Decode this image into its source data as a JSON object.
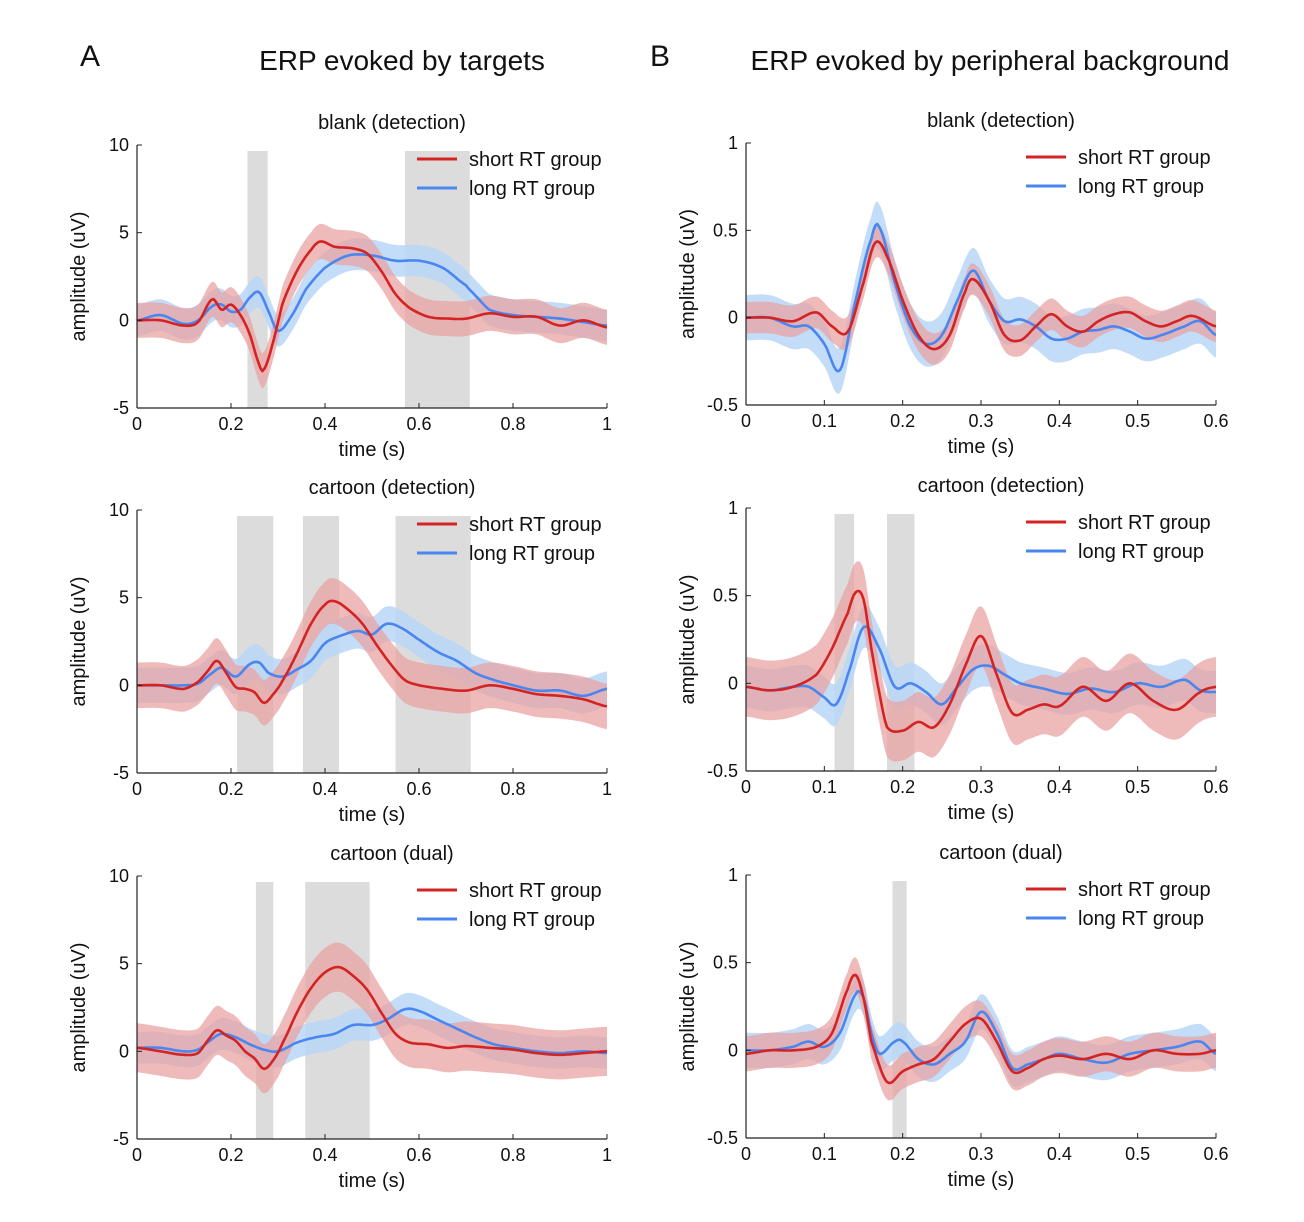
{
  "figure": {
    "panels": [
      {
        "letter": "A",
        "title": "ERP evoked by targets"
      },
      {
        "letter": "B",
        "title": "ERP evoked by peripheral background"
      }
    ],
    "colors": {
      "short": "#d42323",
      "short_band": "#e8a3a3",
      "long": "#4a86ef",
      "long_band": "#b9d6f7",
      "shade": "#dcdcdc"
    }
  },
  "chart_data": [
    {
      "id": "A1",
      "type": "line",
      "title": "blank (detection)",
      "xlabel": "time (s)",
      "ylabel": "amplitude (uV)",
      "xlim": [
        0,
        1
      ],
      "ylim": [
        -5,
        10
      ],
      "xticks": [
        0,
        0.2,
        0.4,
        0.6,
        0.8,
        1
      ],
      "xticklabels": [
        "0",
        "0.2",
        "0.4",
        "0.6",
        "0.8",
        "1"
      ],
      "yticks": [
        -5,
        0,
        5,
        10
      ],
      "yticklabels": [
        "-5",
        "0",
        "5",
        "10"
      ],
      "legend": "top-right",
      "shaded_intervals": [
        [
          0.235,
          0.278
        ],
        [
          0.57,
          0.708
        ]
      ],
      "series": [
        {
          "name": "short RT group",
          "band": 1.0,
          "x": [
            0,
            0.05,
            0.1,
            0.13,
            0.16,
            0.18,
            0.2,
            0.22,
            0.24,
            0.26,
            0.27,
            0.29,
            0.31,
            0.34,
            0.37,
            0.39,
            0.42,
            0.46,
            0.49,
            0.52,
            0.55,
            0.58,
            0.62,
            0.66,
            0.7,
            0.75,
            0.8,
            0.85,
            0.9,
            0.95,
            1.0
          ],
          "y": [
            0,
            0,
            -0.3,
            -0.1,
            1.2,
            0.6,
            0.9,
            0.3,
            -0.8,
            -2.5,
            -2.8,
            -1.2,
            1.0,
            2.8,
            4.0,
            4.5,
            4.2,
            4.1,
            3.8,
            2.8,
            1.5,
            0.7,
            0.2,
            0.1,
            0.1,
            0.4,
            0.2,
            0.2,
            -0.3,
            0,
            -0.4
          ]
        },
        {
          "name": "long RT group",
          "band": 0.9,
          "x": [
            0,
            0.05,
            0.1,
            0.13,
            0.16,
            0.18,
            0.2,
            0.22,
            0.24,
            0.26,
            0.28,
            0.3,
            0.33,
            0.36,
            0.4,
            0.45,
            0.5,
            0.55,
            0.6,
            0.65,
            0.7,
            0.72,
            0.75,
            0.8,
            0.85,
            0.9,
            0.95,
            1.0
          ],
          "y": [
            0,
            0.3,
            -0.2,
            0,
            0.8,
            0.9,
            0.5,
            0.6,
            1.3,
            1.6,
            0.5,
            -0.6,
            0.3,
            1.8,
            3.0,
            3.7,
            3.7,
            3.4,
            3.4,
            3.0,
            2.0,
            1.4,
            0.6,
            0.3,
            0.2,
            0.1,
            -0.1,
            -0.3
          ]
        }
      ]
    },
    {
      "id": "A2",
      "type": "line",
      "title": "cartoon (detection)",
      "xlabel": "time (s)",
      "ylabel": "amplitude (uV)",
      "xlim": [
        0,
        1
      ],
      "ylim": [
        -5,
        10
      ],
      "xticks": [
        0,
        0.2,
        0.4,
        0.6,
        0.8,
        1
      ],
      "xticklabels": [
        "0",
        "0.2",
        "0.4",
        "0.6",
        "0.8",
        "1"
      ],
      "yticks": [
        -5,
        0,
        5,
        10
      ],
      "yticklabels": [
        "-5",
        "0",
        "5",
        "10"
      ],
      "legend": "top-right",
      "shaded_intervals": [
        [
          0.213,
          0.29
        ],
        [
          0.353,
          0.43
        ],
        [
          0.55,
          0.71
        ]
      ],
      "series": [
        {
          "name": "short RT group",
          "band": 1.3,
          "x": [
            0,
            0.05,
            0.1,
            0.13,
            0.15,
            0.17,
            0.19,
            0.21,
            0.23,
            0.25,
            0.27,
            0.29,
            0.31,
            0.34,
            0.37,
            0.4,
            0.42,
            0.45,
            0.48,
            0.51,
            0.54,
            0.57,
            0.6,
            0.65,
            0.7,
            0.75,
            0.8,
            0.85,
            0.9,
            0.95,
            1.0
          ],
          "y": [
            0,
            0,
            -0.2,
            0.2,
            0.8,
            1.4,
            0.7,
            -0.1,
            -0.2,
            -0.4,
            -1.0,
            -0.5,
            0.3,
            1.8,
            3.5,
            4.6,
            4.8,
            4.3,
            3.5,
            2.3,
            1.2,
            0.3,
            0,
            -0.2,
            -0.3,
            0,
            -0.2,
            -0.5,
            -0.6,
            -0.8,
            -1.2
          ]
        },
        {
          "name": "long RT group",
          "band": 1.0,
          "x": [
            0,
            0.05,
            0.1,
            0.13,
            0.16,
            0.18,
            0.21,
            0.24,
            0.26,
            0.28,
            0.31,
            0.34,
            0.37,
            0.4,
            0.43,
            0.47,
            0.5,
            0.53,
            0.56,
            0.6,
            0.64,
            0.68,
            0.72,
            0.76,
            0.8,
            0.85,
            0.9,
            0.95,
            1.0
          ],
          "y": [
            0,
            0,
            0,
            0.1,
            0.7,
            1.0,
            0.5,
            1.2,
            1.3,
            0.7,
            0.5,
            0.9,
            1.4,
            2.4,
            2.8,
            3.1,
            2.9,
            3.5,
            3.3,
            2.6,
            1.9,
            1.4,
            0.7,
            0.3,
            0,
            -0.3,
            -0.3,
            -0.6,
            -0.2
          ]
        }
      ]
    },
    {
      "id": "A3",
      "type": "line",
      "title": "cartoon (dual)",
      "xlabel": "time (s)",
      "ylabel": "amplitude (uV)",
      "xlim": [
        0,
        1
      ],
      "ylim": [
        -5,
        10
      ],
      "xticks": [
        0,
        0.2,
        0.4,
        0.6,
        0.8,
        1
      ],
      "xticklabels": [
        "0",
        "0.2",
        "0.4",
        "0.6",
        "0.8",
        "1"
      ],
      "yticks": [
        -5,
        0,
        5,
        10
      ],
      "yticklabels": [
        "-5",
        "0",
        "5",
        "10"
      ],
      "legend": "top-right",
      "shaded_intervals": [
        [
          0.253,
          0.29
        ],
        [
          0.358,
          0.495
        ]
      ],
      "series": [
        {
          "name": "short RT group",
          "band": 1.4,
          "x": [
            0,
            0.05,
            0.1,
            0.13,
            0.15,
            0.17,
            0.19,
            0.21,
            0.23,
            0.25,
            0.27,
            0.29,
            0.31,
            0.34,
            0.37,
            0.4,
            0.43,
            0.46,
            0.49,
            0.52,
            0.55,
            0.58,
            0.62,
            0.66,
            0.7,
            0.75,
            0.8,
            0.85,
            0.9,
            0.95,
            1.0
          ],
          "y": [
            0.2,
            0,
            -0.2,
            -0.1,
            0.6,
            1.2,
            0.9,
            0.6,
            0,
            -0.4,
            -1.0,
            -0.5,
            0.5,
            2.2,
            3.6,
            4.5,
            4.8,
            4.3,
            3.5,
            2.2,
            1.0,
            0.5,
            0.4,
            0.2,
            0.3,
            0.2,
            0.1,
            -0.1,
            -0.2,
            -0.1,
            0
          ]
        },
        {
          "name": "long RT group",
          "band": 0.9,
          "x": [
            0,
            0.05,
            0.1,
            0.13,
            0.16,
            0.18,
            0.21,
            0.24,
            0.27,
            0.3,
            0.34,
            0.38,
            0.42,
            0.46,
            0.5,
            0.53,
            0.57,
            0.6,
            0.64,
            0.68,
            0.72,
            0.76,
            0.8,
            0.85,
            0.9,
            0.95,
            1.0
          ],
          "y": [
            0.2,
            0.2,
            0,
            0.1,
            0.7,
            1.0,
            0.8,
            0.4,
            0.1,
            0,
            0.5,
            0.8,
            1.0,
            1.5,
            1.5,
            1.8,
            2.4,
            2.3,
            1.8,
            1.3,
            0.8,
            0.4,
            0.2,
            0,
            -0.1,
            0,
            -0.1
          ]
        }
      ]
    },
    {
      "id": "B1",
      "type": "line",
      "title": "blank (detection)",
      "xlabel": "time (s)",
      "ylabel": "amplitude (uV)",
      "xlim": [
        0,
        0.6
      ],
      "ylim": [
        -0.5,
        1
      ],
      "xticks": [
        0,
        0.1,
        0.2,
        0.3,
        0.4,
        0.5,
        0.6
      ],
      "xticklabels": [
        "0",
        "0.1",
        "0.2",
        "0.3",
        "0.4",
        "0.5",
        "0.6"
      ],
      "yticks": [
        -0.5,
        0,
        0.5,
        1
      ],
      "yticklabels": [
        "-0.5",
        "0",
        "0.5",
        "1"
      ],
      "legend": "top-right",
      "shaded_intervals": [],
      "series": [
        {
          "name": "short RT group",
          "band": 0.09,
          "x": [
            0,
            0.03,
            0.06,
            0.09,
            0.11,
            0.13,
            0.15,
            0.165,
            0.18,
            0.2,
            0.22,
            0.24,
            0.26,
            0.28,
            0.29,
            0.31,
            0.33,
            0.35,
            0.37,
            0.39,
            0.41,
            0.43,
            0.45,
            0.47,
            0.49,
            0.51,
            0.53,
            0.55,
            0.57,
            0.6
          ],
          "y": [
            0,
            0,
            -0.02,
            0.03,
            -0.05,
            -0.08,
            0.2,
            0.43,
            0.35,
            0.1,
            -0.1,
            -0.18,
            -0.1,
            0.15,
            0.22,
            0.1,
            -0.1,
            -0.13,
            -0.05,
            0.02,
            -0.05,
            -0.08,
            -0.02,
            0.02,
            0.03,
            -0.02,
            -0.05,
            -0.02,
            0.01,
            -0.05
          ]
        },
        {
          "name": "long RT group",
          "band": 0.13,
          "x": [
            0,
            0.03,
            0.06,
            0.08,
            0.1,
            0.12,
            0.14,
            0.16,
            0.17,
            0.19,
            0.21,
            0.23,
            0.25,
            0.27,
            0.29,
            0.31,
            0.33,
            0.35,
            0.37,
            0.39,
            0.41,
            0.43,
            0.45,
            0.47,
            0.49,
            0.51,
            0.53,
            0.56,
            0.58,
            0.6
          ],
          "y": [
            0,
            0,
            -0.05,
            -0.05,
            -0.15,
            -0.3,
            0.1,
            0.45,
            0.52,
            0.2,
            -0.05,
            -0.15,
            -0.1,
            0.1,
            0.27,
            0.1,
            -0.02,
            -0.01,
            -0.05,
            -0.12,
            -0.12,
            -0.08,
            -0.07,
            -0.05,
            -0.08,
            -0.12,
            -0.1,
            -0.05,
            -0.02,
            -0.1
          ]
        }
      ]
    },
    {
      "id": "B2",
      "type": "line",
      "title": "cartoon (detection)",
      "xlabel": "time (s)",
      "ylabel": "amplitude (uV)",
      "xlim": [
        0,
        0.6
      ],
      "ylim": [
        -0.5,
        1
      ],
      "xticks": [
        0,
        0.1,
        0.2,
        0.3,
        0.4,
        0.5,
        0.6
      ],
      "xticklabels": [
        "0",
        "0.1",
        "0.2",
        "0.3",
        "0.4",
        "0.5",
        "0.6"
      ],
      "yticks": [
        -0.5,
        0,
        0.5,
        1
      ],
      "yticklabels": [
        "-0.5",
        "0",
        "0.5",
        "1"
      ],
      "legend": "top-right",
      "shaded_intervals": [
        [
          0.113,
          0.138
        ],
        [
          0.18,
          0.215
        ]
      ],
      "series": [
        {
          "name": "short RT group",
          "band": 0.17,
          "x": [
            0,
            0.03,
            0.06,
            0.09,
            0.11,
            0.13,
            0.14,
            0.15,
            0.16,
            0.17,
            0.18,
            0.2,
            0.22,
            0.24,
            0.26,
            0.28,
            0.3,
            0.32,
            0.34,
            0.36,
            0.38,
            0.4,
            0.43,
            0.46,
            0.49,
            0.52,
            0.55,
            0.58,
            0.6
          ],
          "y": [
            -0.02,
            -0.04,
            -0.02,
            0.05,
            0.2,
            0.4,
            0.52,
            0.48,
            0.2,
            -0.05,
            -0.25,
            -0.27,
            -0.22,
            -0.25,
            -0.12,
            0.1,
            0.27,
            0.05,
            -0.17,
            -0.15,
            -0.12,
            -0.13,
            -0.02,
            -0.1,
            0,
            -0.1,
            -0.15,
            -0.05,
            -0.02
          ]
        },
        {
          "name": "long RT group",
          "band": 0.12,
          "x": [
            0,
            0.03,
            0.06,
            0.08,
            0.1,
            0.115,
            0.13,
            0.15,
            0.17,
            0.19,
            0.21,
            0.23,
            0.25,
            0.27,
            0.29,
            0.31,
            0.33,
            0.35,
            0.38,
            0.41,
            0.44,
            0.47,
            0.5,
            0.53,
            0.56,
            0.58,
            0.6
          ],
          "y": [
            -0.02,
            -0.04,
            -0.02,
            -0.02,
            -0.08,
            -0.12,
            0.05,
            0.32,
            0.2,
            -0.02,
            0,
            -0.05,
            -0.12,
            -0.02,
            0.08,
            0.1,
            0.05,
            0.0,
            -0.03,
            -0.06,
            -0.03,
            -0.05,
            0,
            -0.02,
            0.02,
            -0.04,
            -0.05
          ]
        }
      ]
    },
    {
      "id": "B3",
      "type": "line",
      "title": "cartoon (dual)",
      "xlabel": "time (s)",
      "ylabel": "amplitude (uV)",
      "xlim": [
        0,
        0.6
      ],
      "ylim": [
        -0.5,
        1
      ],
      "xticks": [
        0,
        0.1,
        0.2,
        0.3,
        0.4,
        0.5,
        0.6
      ],
      "xticklabels": [
        "0",
        "0.1",
        "0.2",
        "0.3",
        "0.4",
        "0.5",
        "0.6"
      ],
      "yticks": [
        -0.5,
        0,
        0.5,
        1
      ],
      "yticklabels": [
        "-0.5",
        "0",
        "0.5",
        "1"
      ],
      "legend": "top-right",
      "shaded_intervals": [
        [
          0.187,
          0.205
        ]
      ],
      "series": [
        {
          "name": "short RT group",
          "band": 0.1,
          "x": [
            0,
            0.03,
            0.06,
            0.09,
            0.11,
            0.13,
            0.14,
            0.15,
            0.16,
            0.18,
            0.2,
            0.22,
            0.24,
            0.26,
            0.28,
            0.3,
            0.32,
            0.34,
            0.36,
            0.38,
            0.4,
            0.43,
            0.46,
            0.49,
            0.52,
            0.55,
            0.58,
            0.6
          ],
          "y": [
            -0.02,
            0,
            0,
            0.02,
            0.1,
            0.35,
            0.43,
            0.3,
            0.05,
            -0.18,
            -0.12,
            -0.08,
            -0.05,
            0.05,
            0.15,
            0.18,
            0.05,
            -0.12,
            -0.1,
            -0.05,
            -0.03,
            -0.05,
            -0.02,
            -0.05,
            0,
            -0.02,
            -0.02,
            0
          ]
        },
        {
          "name": "long RT group",
          "band": 0.1,
          "x": [
            0,
            0.03,
            0.06,
            0.08,
            0.1,
            0.12,
            0.14,
            0.15,
            0.16,
            0.17,
            0.19,
            0.2,
            0.22,
            0.24,
            0.26,
            0.28,
            0.3,
            0.32,
            0.34,
            0.36,
            0.38,
            0.4,
            0.43,
            0.46,
            0.49,
            0.52,
            0.55,
            0.58,
            0.6
          ],
          "y": [
            0,
            0,
            0.02,
            0.05,
            0.02,
            0.1,
            0.32,
            0.3,
            0.1,
            -0.02,
            0.05,
            0.05,
            -0.05,
            -0.08,
            -0.02,
            0.05,
            0.22,
            0.1,
            -0.1,
            -0.08,
            -0.05,
            -0.02,
            -0.05,
            -0.07,
            -0.02,
            0.0,
            0.02,
            0.05,
            -0.02
          ]
        }
      ]
    }
  ]
}
